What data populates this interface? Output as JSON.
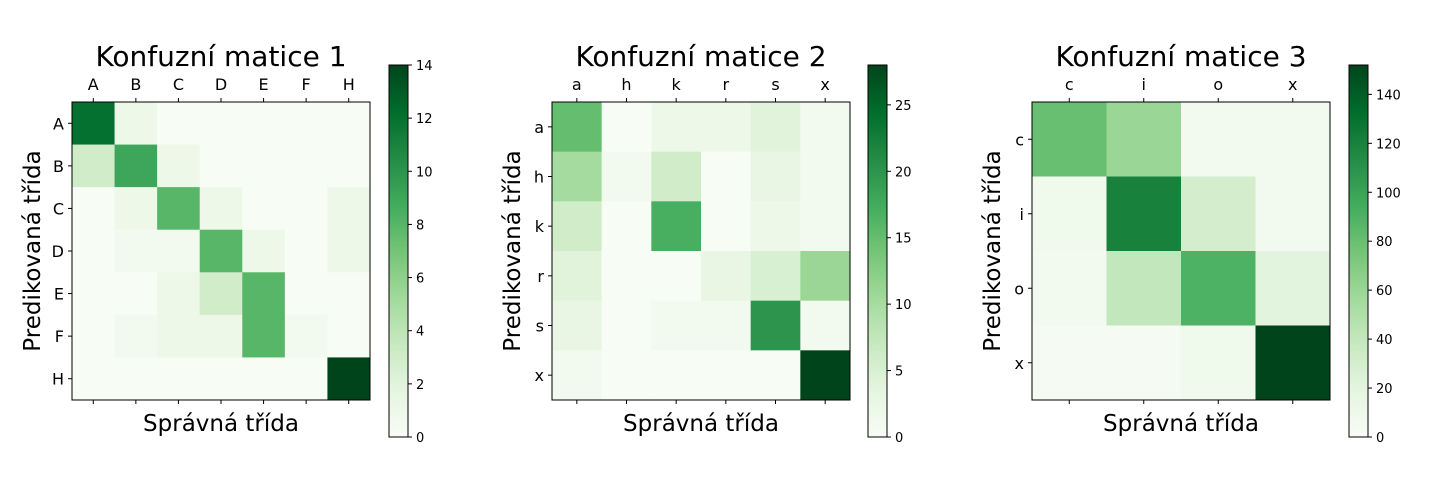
{
  "chart_data": [
    {
      "type": "heatmap",
      "title": "Konfuzní matice 1",
      "xlabel": "Správná třída",
      "ylabel": "Predikovaná třída",
      "x_categories": [
        "A",
        "B",
        "C",
        "D",
        "E",
        "F",
        "H"
      ],
      "y_categories": [
        "A",
        "B",
        "C",
        "D",
        "E",
        "F",
        "H"
      ],
      "values": [
        [
          12,
          1,
          0,
          0,
          0,
          0,
          0
        ],
        [
          3,
          9,
          1,
          0,
          0,
          0,
          0
        ],
        [
          0,
          1,
          8,
          1,
          0,
          0,
          1
        ],
        [
          0,
          0.5,
          0.5,
          8,
          1,
          0,
          1
        ],
        [
          0,
          0,
          1,
          3,
          8,
          0,
          0
        ],
        [
          0,
          0.5,
          1,
          1,
          8,
          0.5,
          0
        ],
        [
          0,
          0,
          0,
          0,
          0,
          0,
          14
        ]
      ],
      "colorbar": {
        "min": 0,
        "max": 14,
        "ticks": [
          0,
          2,
          4,
          6,
          8,
          10,
          12,
          14
        ]
      },
      "colormap": "Greens"
    },
    {
      "type": "heatmap",
      "title": "Konfuzní matice 2",
      "xlabel": "Správná třída",
      "ylabel": "Predikovaná třída",
      "x_categories": [
        "a",
        "h",
        "k",
        "r",
        "s",
        "x"
      ],
      "y_categories": [
        "a",
        "h",
        "k",
        "r",
        "s",
        "x"
      ],
      "values": [
        [
          15,
          0,
          2,
          2,
          4,
          1
        ],
        [
          10,
          1,
          6,
          0,
          3,
          1
        ],
        [
          6,
          0,
          17,
          0,
          2,
          1
        ],
        [
          4,
          0,
          0,
          3,
          5,
          11
        ],
        [
          3,
          0,
          1,
          1,
          20,
          1
        ],
        [
          1,
          0,
          0,
          0,
          0,
          28
        ]
      ],
      "colorbar": {
        "min": 0,
        "max": 28,
        "ticks": [
          0,
          5,
          10,
          15,
          20,
          25
        ]
      },
      "colormap": "Greens"
    },
    {
      "type": "heatmap",
      "title": "Konfuzní matice 3",
      "xlabel": "Správná třída",
      "ylabel": "Predikovaná třída",
      "x_categories": [
        "c",
        "i",
        "o",
        "x"
      ],
      "y_categories": [
        "c",
        "i",
        "o",
        "x"
      ],
      "values": [
        [
          80,
          60,
          5,
          5
        ],
        [
          8,
          120,
          30,
          5
        ],
        [
          5,
          40,
          90,
          20
        ],
        [
          2,
          2,
          8,
          152
        ]
      ],
      "colorbar": {
        "min": 0,
        "max": 152,
        "ticks": [
          0,
          20,
          40,
          60,
          80,
          100,
          120,
          140
        ]
      },
      "colormap": "Greens"
    }
  ]
}
